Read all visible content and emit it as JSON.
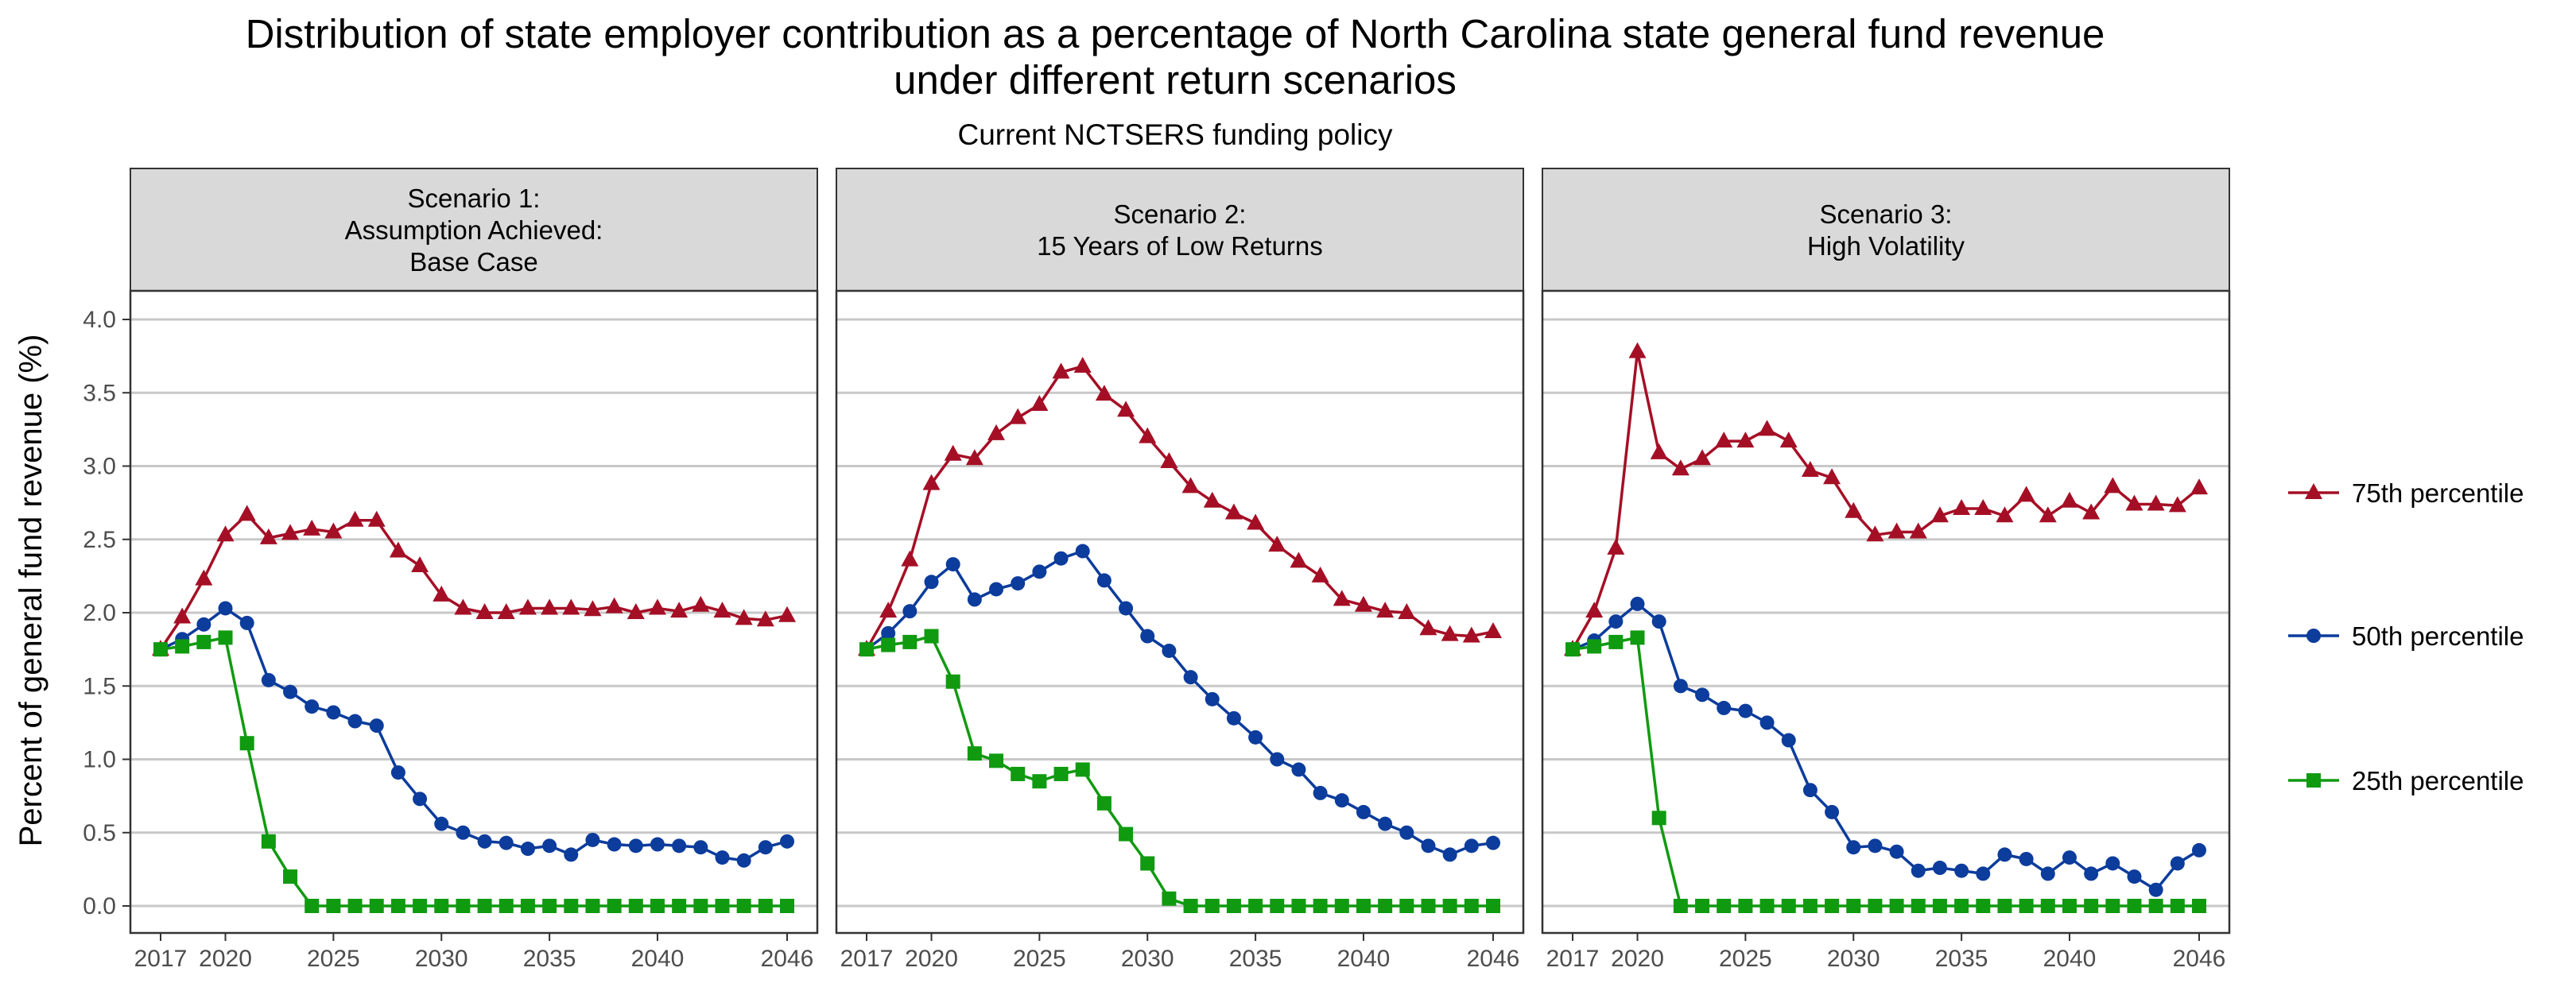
{
  "chart_data": {
    "type": "line",
    "title": [
      "Distribution of state employer contribution as a percentage of North Carolina state general fund revenue",
      "under different return scenarios"
    ],
    "subtitle": "Current NCTSERS funding policy",
    "ylabel": "Percent of general fund revenue (%)",
    "xlabel": "",
    "xlim": [
      2017,
      2046
    ],
    "ylim": [
      0,
      4
    ],
    "x_ticks": [
      2017,
      2020,
      2025,
      2030,
      2035,
      2040,
      2046
    ],
    "y_ticks": [
      0,
      0.5,
      1,
      1.5,
      2,
      2.5,
      3,
      3.5,
      4
    ],
    "y_tick_labels": [
      "0.0",
      "0.5",
      "1.0",
      "1.5",
      "2.0",
      "2.5",
      "3.0",
      "3.5",
      "4.0"
    ],
    "grid": "horizontal major",
    "legend_position": "right",
    "x": [
      2017,
      2018,
      2019,
      2020,
      2021,
      2022,
      2023,
      2024,
      2025,
      2026,
      2027,
      2028,
      2029,
      2030,
      2031,
      2032,
      2033,
      2034,
      2035,
      2036,
      2037,
      2038,
      2039,
      2040,
      2041,
      2042,
      2043,
      2044,
      2045,
      2046
    ],
    "series_styles": [
      {
        "name": "75th percentile",
        "color": "#a50f26",
        "marker": "triangle"
      },
      {
        "name": "50th percentile",
        "color": "#0c3c9c",
        "marker": "circle"
      },
      {
        "name": "25th percentile",
        "color": "#109a10",
        "marker": "square"
      }
    ],
    "panels": [
      {
        "label": [
          "Scenario 1:",
          "Assumption Achieved:",
          "Base Case"
        ],
        "series": [
          {
            "name": "75th percentile",
            "values": [
              1.75,
              1.97,
              2.23,
              2.53,
              2.67,
              2.51,
              2.54,
              2.57,
              2.55,
              2.63,
              2.63,
              2.42,
              2.32,
              2.12,
              2.03,
              2.0,
              2.0,
              2.03,
              2.03,
              2.03,
              2.02,
              2.04,
              2.0,
              2.03,
              2.01,
              2.05,
              2.01,
              1.96,
              1.95,
              1.98
            ]
          },
          {
            "name": "50th percentile",
            "values": [
              1.75,
              1.82,
              1.92,
              2.03,
              1.93,
              1.54,
              1.46,
              1.36,
              1.32,
              1.26,
              1.23,
              0.91,
              0.73,
              0.56,
              0.5,
              0.44,
              0.43,
              0.39,
              0.41,
              0.35,
              0.45,
              0.42,
              0.41,
              0.42,
              0.41,
              0.4,
              0.33,
              0.31,
              0.4,
              0.44
            ]
          },
          {
            "name": "25th percentile",
            "values": [
              1.75,
              1.77,
              1.8,
              1.83,
              1.11,
              0.44,
              0.2,
              0.0,
              0.0,
              0.0,
              0.0,
              0.0,
              0.0,
              0.0,
              0.0,
              0.0,
              0.0,
              0.0,
              0.0,
              0.0,
              0.0,
              0.0,
              0.0,
              0.0,
              0.0,
              0.0,
              0.0,
              0.0,
              0.0,
              0.0
            ]
          }
        ]
      },
      {
        "label": [
          "Scenario 2:",
          "15 Years of Low Returns"
        ],
        "series": [
          {
            "name": "75th percentile",
            "values": [
              1.75,
              2.01,
              2.36,
              2.88,
              3.08,
              3.05,
              3.22,
              3.33,
              3.42,
              3.64,
              3.68,
              3.49,
              3.38,
              3.2,
              3.03,
              2.86,
              2.76,
              2.68,
              2.61,
              2.46,
              2.35,
              2.25,
              2.09,
              2.05,
              2.01,
              2.0,
              1.89,
              1.85,
              1.84,
              1.87
            ]
          },
          {
            "name": "50th percentile",
            "values": [
              1.75,
              1.86,
              2.01,
              2.21,
              2.33,
              2.09,
              2.16,
              2.2,
              2.28,
              2.37,
              2.42,
              2.22,
              2.03,
              1.84,
              1.74,
              1.56,
              1.41,
              1.28,
              1.15,
              1.0,
              0.93,
              0.77,
              0.72,
              0.64,
              0.56,
              0.5,
              0.41,
              0.35,
              0.41,
              0.43
            ]
          },
          {
            "name": "25th percentile",
            "values": [
              1.75,
              1.78,
              1.8,
              1.84,
              1.53,
              1.04,
              0.99,
              0.9,
              0.85,
              0.9,
              0.93,
              0.7,
              0.49,
              0.29,
              0.05,
              0.0,
              0.0,
              0.0,
              0.0,
              0.0,
              0.0,
              0.0,
              0.0,
              0.0,
              0.0,
              0.0,
              0.0,
              0.0,
              0.0,
              0.0
            ]
          }
        ]
      },
      {
        "label": [
          "Scenario 3:",
          "High Volatility"
        ],
        "series": [
          {
            "name": "75th percentile",
            "values": [
              1.75,
              2.01,
              2.44,
              3.78,
              3.09,
              2.98,
              3.05,
              3.17,
              3.17,
              3.25,
              3.17,
              2.97,
              2.92,
              2.69,
              2.53,
              2.55,
              2.55,
              2.66,
              2.71,
              2.71,
              2.66,
              2.8,
              2.66,
              2.76,
              2.68,
              2.86,
              2.74,
              2.74,
              2.73,
              2.85
            ]
          },
          {
            "name": "50th percentile",
            "values": [
              1.75,
              1.81,
              1.94,
              2.06,
              1.94,
              1.5,
              1.44,
              1.35,
              1.33,
              1.25,
              1.13,
              0.79,
              0.64,
              0.4,
              0.41,
              0.37,
              0.24,
              0.26,
              0.24,
              0.22,
              0.35,
              0.32,
              0.22,
              0.33,
              0.22,
              0.29,
              0.2,
              0.11,
              0.29,
              0.38
            ]
          },
          {
            "name": "25th percentile",
            "values": [
              1.75,
              1.77,
              1.8,
              1.83,
              0.6,
              0.0,
              0.0,
              0.0,
              0.0,
              0.0,
              0.0,
              0.0,
              0.0,
              0.0,
              0.0,
              0.0,
              0.0,
              0.0,
              0.0,
              0.0,
              0.0,
              0.0,
              0.0,
              0.0,
              0.0,
              0.0,
              0.0,
              0.0,
              0.0,
              0.0
            ]
          }
        ]
      }
    ],
    "legend": [
      {
        "label": "75th percentile",
        "marker": "triangle",
        "color": "#a50f26"
      },
      {
        "label": "50th percentile",
        "marker": "circle",
        "color": "#0c3c9c"
      },
      {
        "label": "25th percentile",
        "marker": "square",
        "color": "#109a10"
      }
    ]
  }
}
